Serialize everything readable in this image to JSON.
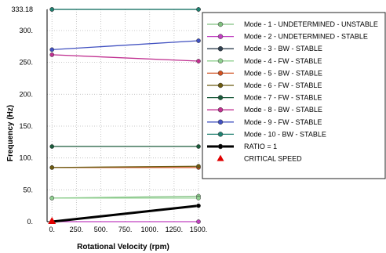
{
  "chart_data": {
    "type": "line",
    "xlabel": "Rotational Velocity (rpm)",
    "ylabel": "Frequency (Hz)",
    "xlim": [
      -50,
      1500
    ],
    "ylim": [
      0,
      333.18
    ],
    "xticks": [
      {
        "value": 0,
        "label": "0."
      },
      {
        "value": 250,
        "label": "250."
      },
      {
        "value": 500,
        "label": "500."
      },
      {
        "value": 750,
        "label": "750."
      },
      {
        "value": 1000,
        "label": "1000."
      },
      {
        "value": 1250,
        "label": "1250."
      },
      {
        "value": 1500,
        "label": "1500."
      }
    ],
    "yticks": [
      {
        "value": 0,
        "label": "0."
      },
      {
        "value": 50,
        "label": "50."
      },
      {
        "value": 100,
        "label": "100."
      },
      {
        "value": 150,
        "label": "150."
      },
      {
        "value": 200,
        "label": "200."
      },
      {
        "value": 250,
        "label": "250."
      },
      {
        "value": 300,
        "label": "300."
      },
      {
        "value": 333.18,
        "label": "333.18"
      }
    ],
    "grid": true,
    "legend_position": "right",
    "series": [
      {
        "name": "Mode - 1  - UNDETERMINED  - UNSTABLE",
        "color": "#80c080",
        "marker": "circle",
        "x": [
          0,
          1500
        ],
        "y": [
          37,
          40
        ]
      },
      {
        "name": "Mode - 2  - UNDETERMINED  - STABLE",
        "color": "#c040c0",
        "marker": "circle",
        "x": [
          0,
          1500
        ],
        "y": [
          0,
          0
        ]
      },
      {
        "name": "Mode - 3  - BW  - STABLE",
        "color": "#304050",
        "marker": "circle",
        "x": [
          0,
          1500
        ],
        "y": [
          333.18,
          333.18
        ]
      },
      {
        "name": "Mode - 4  - FW  - STABLE",
        "color": "#90d090",
        "marker": "circle",
        "x": [
          0,
          1500
        ],
        "y": [
          37,
          37
        ]
      },
      {
        "name": "Mode - 5  - BW  - STABLE",
        "color": "#d05020",
        "marker": "circle",
        "x": [
          0,
          1500
        ],
        "y": [
          85,
          85
        ]
      },
      {
        "name": "Mode - 6  - FW  - STABLE",
        "color": "#6b5a10",
        "marker": "circle",
        "x": [
          0,
          1500
        ],
        "y": [
          85,
          87
        ]
      },
      {
        "name": "Mode - 7  - FW  - STABLE",
        "color": "#1a5a3a",
        "marker": "circle",
        "x": [
          0,
          1500
        ],
        "y": [
          118,
          118
        ]
      },
      {
        "name": "Mode - 8  - BW  - STABLE",
        "color": "#c03090",
        "marker": "circle",
        "x": [
          0,
          1500
        ],
        "y": [
          262,
          252
        ]
      },
      {
        "name": "Mode - 9  - FW  - STABLE",
        "color": "#4050c0",
        "marker": "circle",
        "x": [
          0,
          1500
        ],
        "y": [
          270,
          284
        ]
      },
      {
        "name": "Mode - 10  - BW  - STABLE",
        "color": "#208070",
        "marker": "circle",
        "x": [
          0,
          1500
        ],
        "y": [
          333.18,
          333.18
        ]
      },
      {
        "name": "RATIO = 1",
        "color": "#000000",
        "marker": "circle",
        "x": [
          0,
          1500
        ],
        "y": [
          0,
          25
        ]
      }
    ],
    "annotations": [
      {
        "name": "CRITICAL SPEED",
        "color": "#e00000",
        "marker": "triangle",
        "x": [
          0
        ],
        "y": [
          0
        ]
      }
    ]
  }
}
